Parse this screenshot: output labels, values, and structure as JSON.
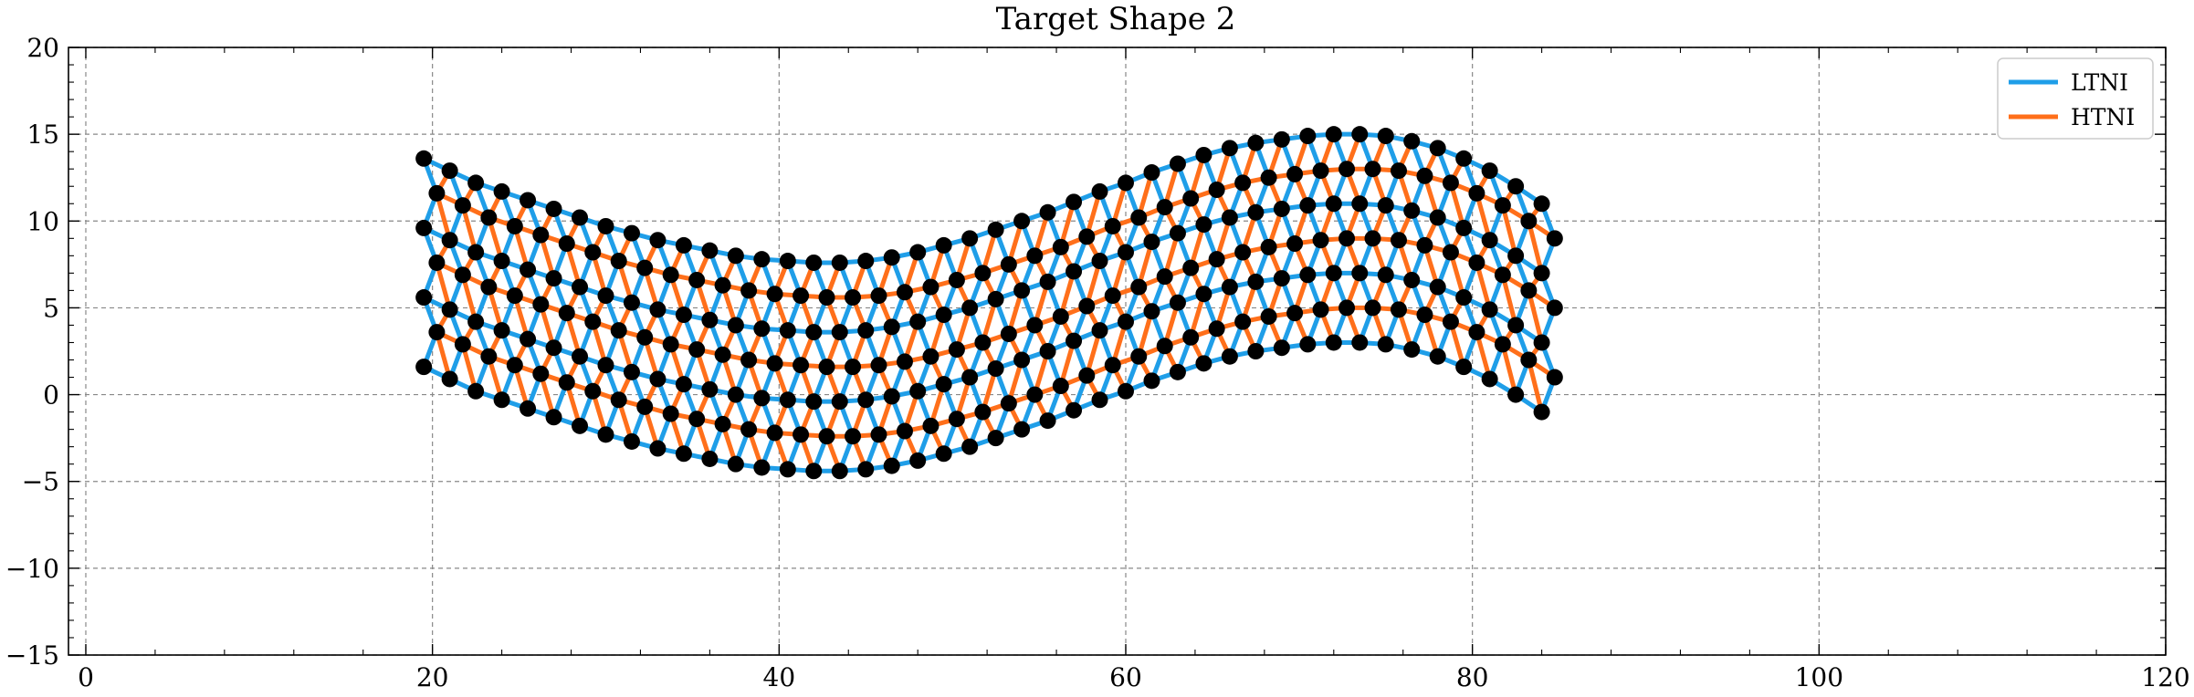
{
  "chart_data": {
    "type": "line",
    "title": "Target Shape 2",
    "xlabel": "",
    "ylabel": "",
    "xlim": [
      -1,
      120
    ],
    "ylim": [
      -15,
      20
    ],
    "x_ticks": [
      0,
      20,
      40,
      60,
      80,
      100,
      120
    ],
    "y_ticks": [
      -15,
      -10,
      -5,
      0,
      5,
      10,
      15,
      20
    ],
    "x_tick_labels": [
      "0",
      "20",
      "40",
      "60",
      "80",
      "100",
      "120"
    ],
    "y_tick_labels": [
      "−15",
      "−10",
      "−5",
      "0",
      "5",
      "10",
      "15",
      "20"
    ],
    "grid": true,
    "legend_position": "top-right",
    "series": [
      {
        "name": "LTNI",
        "color": "#1f9ee8"
      },
      {
        "name": "HTNI",
        "color": "#ff6f1a"
      }
    ],
    "node_color": "#000000",
    "lattice": {
      "columns": 44,
      "rows": 7,
      "note_pattern": "rows alternate LTNI/HTNI bands; diagonals LTNI",
      "centerline": [
        [
          19.5,
          7.6
        ],
        [
          21.0,
          6.9
        ],
        [
          22.5,
          6.2
        ],
        [
          24.0,
          5.7
        ],
        [
          25.5,
          5.2
        ],
        [
          27.0,
          4.7
        ],
        [
          28.5,
          4.2
        ],
        [
          30.0,
          3.7
        ],
        [
          31.5,
          3.3
        ],
        [
          33.0,
          2.9
        ],
        [
          34.5,
          2.6
        ],
        [
          36.0,
          2.3
        ],
        [
          37.5,
          2.0
        ],
        [
          39.0,
          1.8
        ],
        [
          40.5,
          1.7
        ],
        [
          42.0,
          1.6
        ],
        [
          43.5,
          1.6
        ],
        [
          45.0,
          1.7
        ],
        [
          46.5,
          1.9
        ],
        [
          48.0,
          2.2
        ],
        [
          49.5,
          2.6
        ],
        [
          51.0,
          3.0
        ],
        [
          52.5,
          3.5
        ],
        [
          54.0,
          4.0
        ],
        [
          55.5,
          4.5
        ],
        [
          57.0,
          5.1
        ],
        [
          58.5,
          5.7
        ],
        [
          60.0,
          6.2
        ],
        [
          61.5,
          6.8
        ],
        [
          63.0,
          7.3
        ],
        [
          64.5,
          7.8
        ],
        [
          66.0,
          8.2
        ],
        [
          67.5,
          8.5
        ],
        [
          69.0,
          8.7
        ],
        [
          70.5,
          8.9
        ],
        [
          72.0,
          9.0
        ],
        [
          73.5,
          9.0
        ],
        [
          75.0,
          8.9
        ],
        [
          76.5,
          8.6
        ],
        [
          78.0,
          8.2
        ],
        [
          79.5,
          7.6
        ],
        [
          81.0,
          6.9
        ],
        [
          82.5,
          6.0
        ],
        [
          84.0,
          5.0
        ]
      ]
    }
  }
}
